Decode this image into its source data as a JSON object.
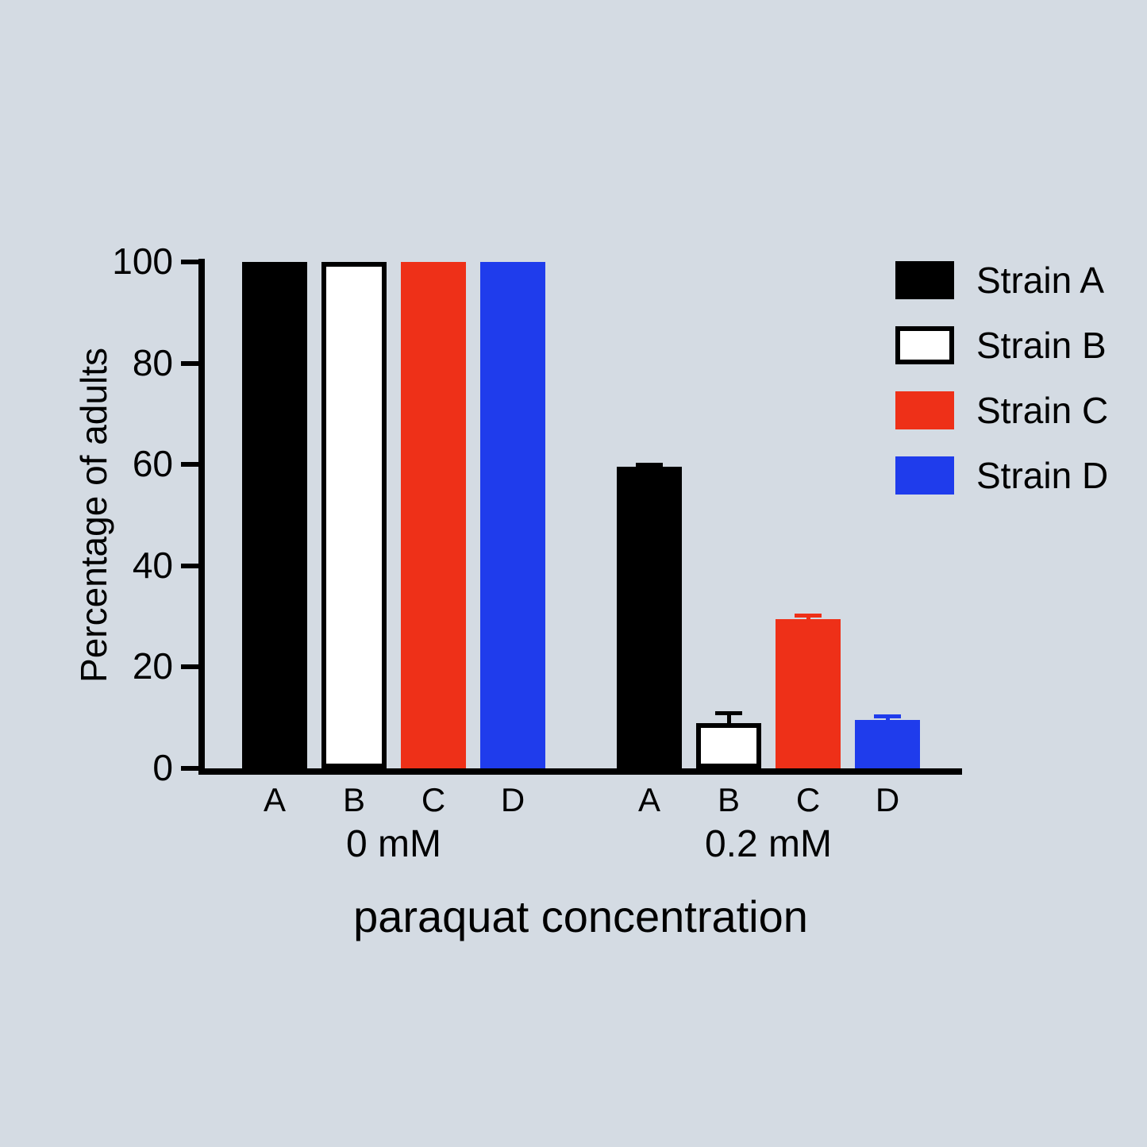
{
  "background": "#d4dbe3",
  "chart_data": {
    "type": "bar",
    "title": "",
    "xlabel": "paraquat concentration",
    "ylabel": "Percentage of adults",
    "ylim": [
      0,
      100
    ],
    "yticks": [
      0,
      20,
      40,
      60,
      80,
      100
    ],
    "grid": false,
    "legend_position": "top-right",
    "series_colors": {
      "A": "#000000",
      "B": "#ffffff",
      "C": "#ee3018",
      "D": "#1f3cec"
    },
    "error_bar_colors": {
      "A": "#000000",
      "B": "#000000",
      "C": "#ee3018",
      "D": "#1f3cec"
    },
    "groups": [
      {
        "label": "0 mM",
        "bars": [
          {
            "strain": "A",
            "value": 100,
            "error": 0
          },
          {
            "strain": "B",
            "value": 100,
            "error": 0
          },
          {
            "strain": "C",
            "value": 100,
            "error": 0
          },
          {
            "strain": "D",
            "value": 100,
            "error": 0
          }
        ]
      },
      {
        "label": "0.2 mM",
        "bars": [
          {
            "strain": "A",
            "value": 59.5,
            "error": 0.6
          },
          {
            "strain": "B",
            "value": 9,
            "error": 2
          },
          {
            "strain": "C",
            "value": 29.5,
            "error": 0.7
          },
          {
            "strain": "D",
            "value": 9.5,
            "error": 0.9
          }
        ]
      }
    ],
    "legend": [
      {
        "label": "Strain A",
        "color": "#000000"
      },
      {
        "label": "Strain B",
        "color": "#ffffff"
      },
      {
        "label": "Strain C",
        "color": "#ee3018"
      },
      {
        "label": "Strain D",
        "color": "#1f3cec"
      }
    ]
  }
}
